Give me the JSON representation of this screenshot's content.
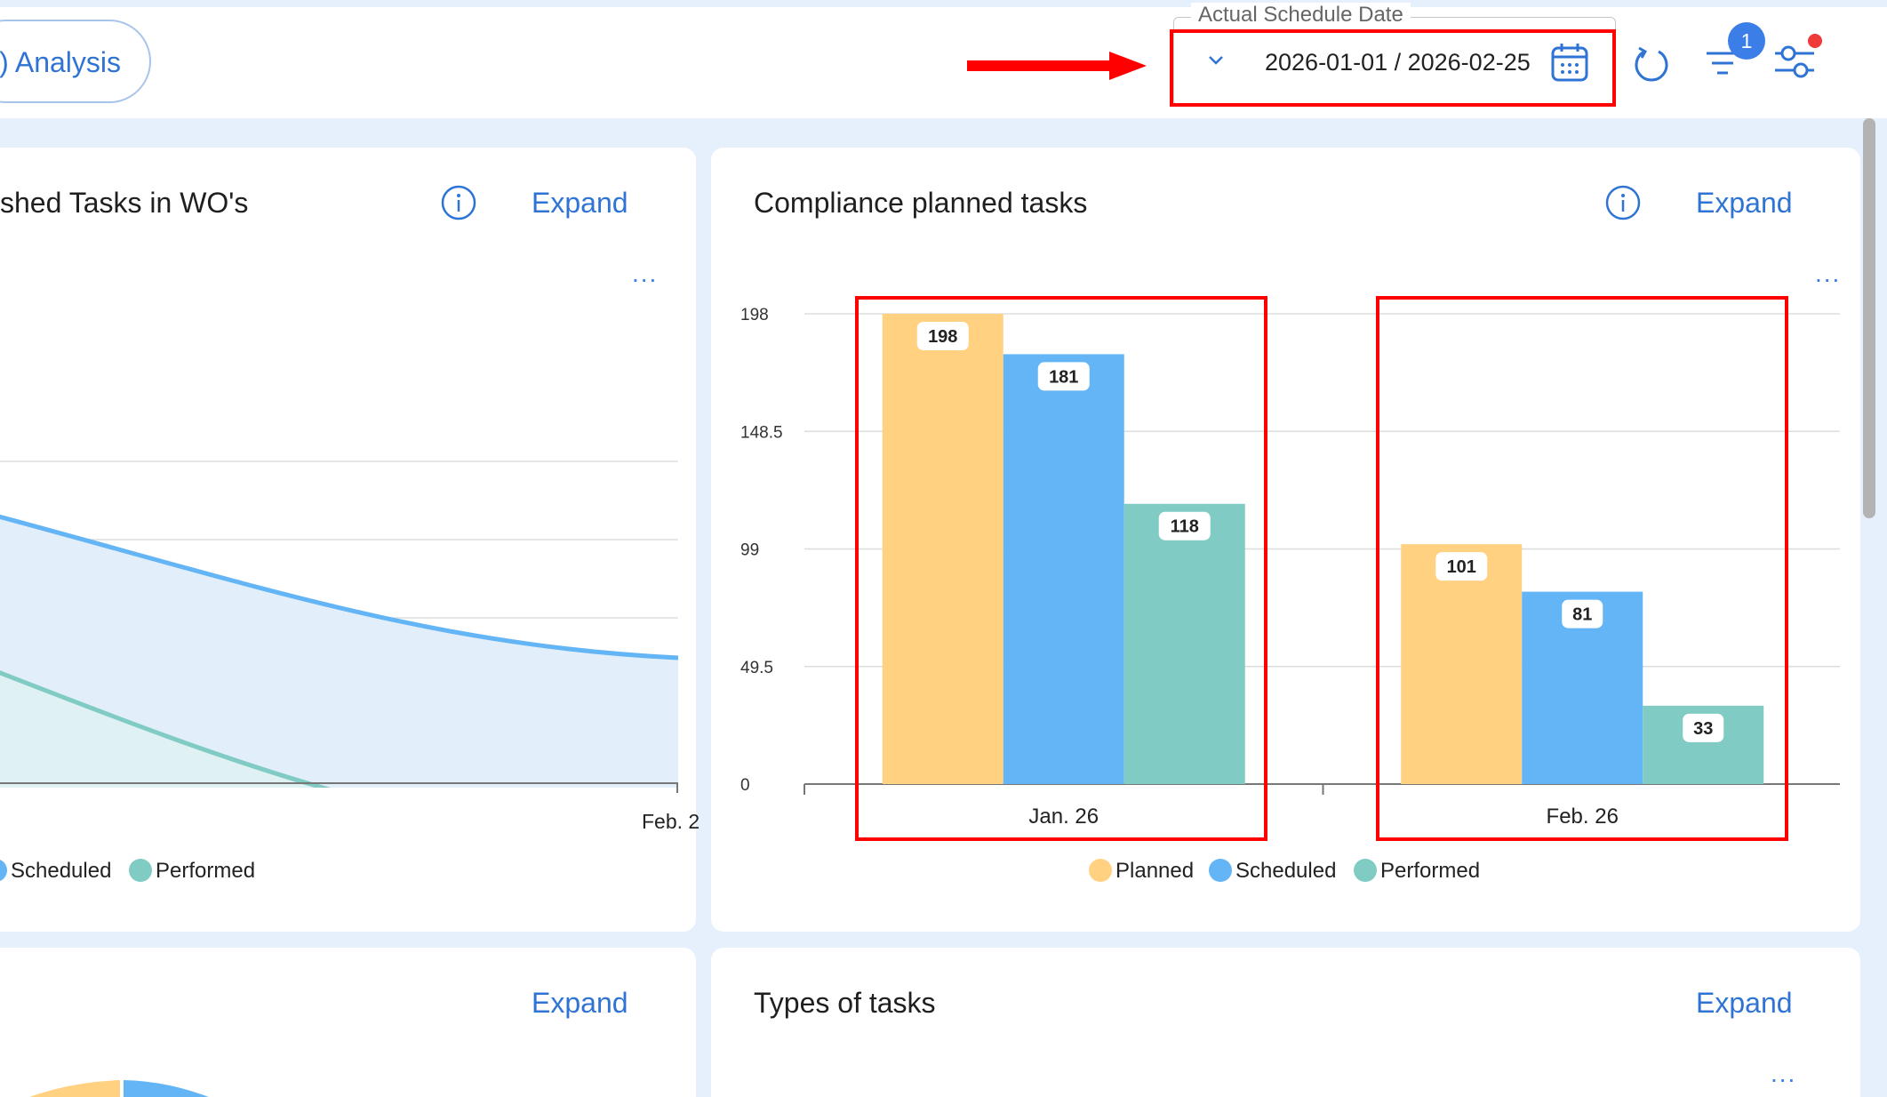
{
  "header": {
    "analysis_label": ") Analysis",
    "date_filter": {
      "label": "Actual Schedule Date",
      "value": "2026-01-01 / 2026-02-25"
    },
    "filter_badge": "1"
  },
  "cards": {
    "left_top": {
      "title": "shed Tasks in WO's",
      "expand": "Expand",
      "more": "...",
      "xlabel_partial": "Feb. 2",
      "legend": [
        "Scheduled",
        "Performed"
      ]
    },
    "right_top": {
      "title": "Compliance planned tasks",
      "expand": "Expand",
      "more": "..."
    },
    "left_bottom": {
      "expand": "Expand"
    },
    "right_bottom": {
      "title": "Types of tasks",
      "expand": "Expand",
      "more": "..."
    }
  },
  "colors": {
    "planned": "#ffd180",
    "scheduled": "#64b5f6",
    "performed": "#80cbc4",
    "accent": "#2f74d4",
    "highlight": "#ff0000"
  },
  "chart_data": {
    "type": "bar",
    "title": "Compliance planned tasks",
    "categories": [
      "Jan. 26",
      "Feb. 26"
    ],
    "series": [
      {
        "name": "Planned",
        "values": [
          198,
          101
        ]
      },
      {
        "name": "Scheduled",
        "values": [
          181,
          81
        ]
      },
      {
        "name": "Performed",
        "values": [
          118,
          33
        ]
      }
    ],
    "yticks": [
      "0",
      "49.5",
      "99",
      "148.5",
      "198"
    ],
    "ylim": [
      0,
      198
    ],
    "grid": true,
    "legend": "bottom-center"
  }
}
